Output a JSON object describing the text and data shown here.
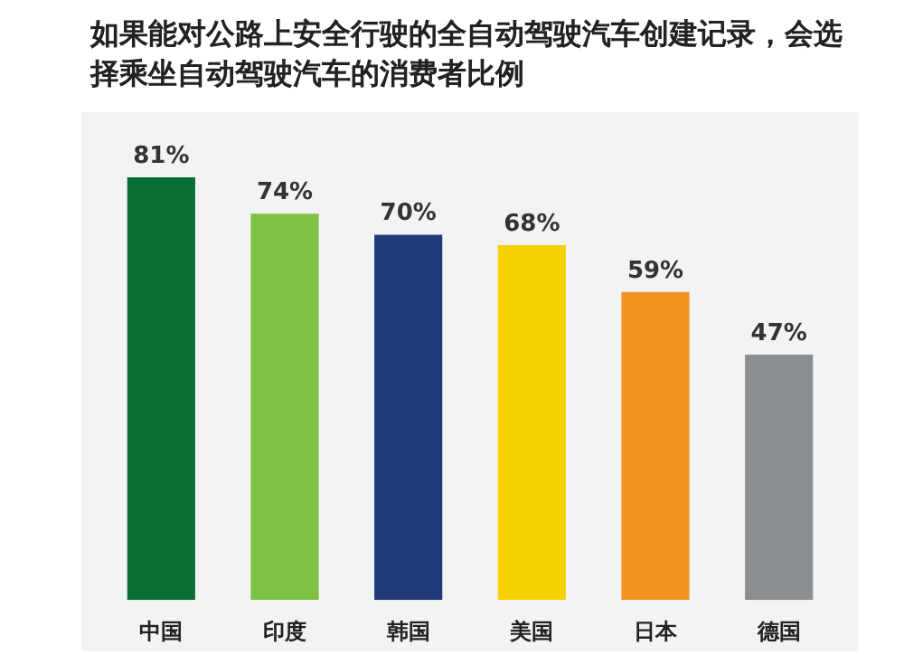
{
  "chart_data": {
    "type": "bar",
    "title": "如果能对公路上安全行驶的全自动驾驶汽车创建记录，会选择乘坐自动驾驶汽车的消费者比例",
    "categories": [
      "中国",
      "印度",
      "韩国",
      "美国",
      "日本",
      "德国"
    ],
    "values": [
      81,
      74,
      70,
      68,
      59,
      47
    ],
    "colors": [
      "#0a6e35",
      "#7dc242",
      "#213a78",
      "#f7d000",
      "#f39221",
      "#8a8d91"
    ],
    "value_labels": [
      "81%",
      "74%",
      "70%",
      "68%",
      "59%",
      "47%"
    ],
    "tick_labels": "x",
    "grid": false,
    "legend": false
  }
}
